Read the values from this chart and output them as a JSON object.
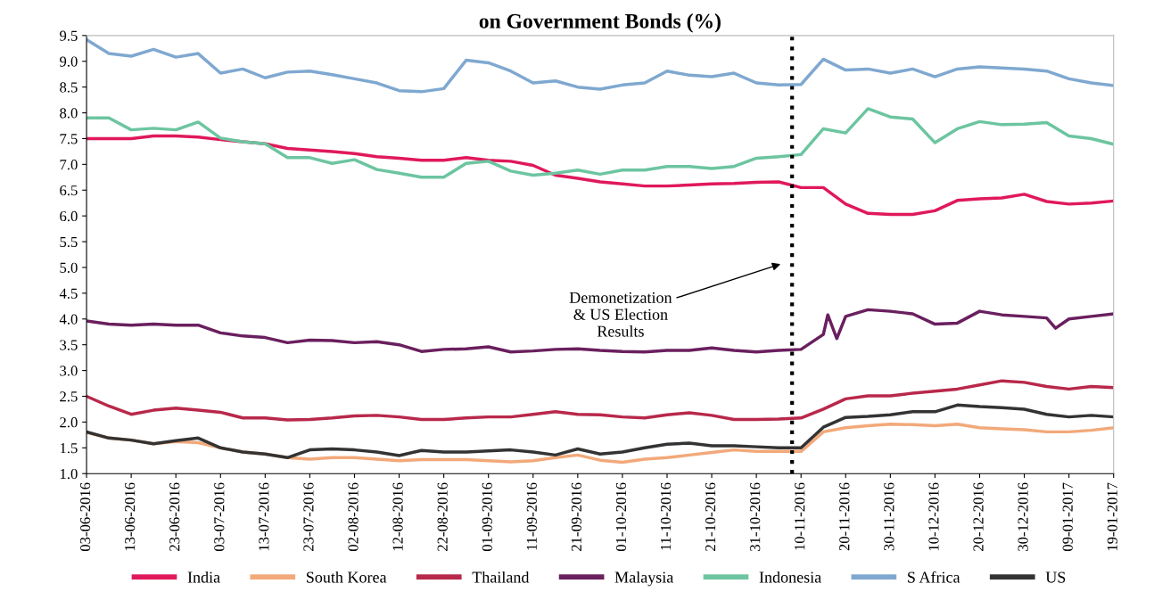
{
  "chart_data": {
    "type": "line",
    "title": "on Government Bonds (%)",
    "x": [
      "2016-06-03",
      "2016-06-08",
      "2016-06-13",
      "2016-06-18",
      "2016-06-23",
      "2016-06-28",
      "2016-07-03",
      "2016-07-08",
      "2016-07-13",
      "2016-07-18",
      "2016-07-23",
      "2016-07-28",
      "2016-08-02",
      "2016-08-07",
      "2016-08-12",
      "2016-08-17",
      "2016-08-22",
      "2016-08-27",
      "2016-09-01",
      "2016-09-06",
      "2016-09-11",
      "2016-09-16",
      "2016-09-21",
      "2016-09-26",
      "2016-10-01",
      "2016-10-06",
      "2016-10-11",
      "2016-10-16",
      "2016-10-21",
      "2016-10-26",
      "2016-10-31",
      "2016-11-05",
      "2016-11-10",
      "2016-11-15",
      "2016-11-20",
      "2016-11-25",
      "2016-11-30",
      "2016-12-05",
      "2016-12-10",
      "2016-12-15",
      "2016-12-20",
      "2016-12-25",
      "2016-12-30",
      "2017-01-04",
      "2017-01-09",
      "2017-01-14",
      "2017-01-19"
    ],
    "series": [
      {
        "name": "India",
        "color": "#e0195a",
        "values": [
          7.5,
          7.5,
          7.5,
          7.55,
          7.55,
          7.53,
          7.48,
          7.44,
          7.4,
          7.31,
          7.28,
          7.25,
          7.21,
          7.15,
          7.12,
          7.08,
          7.08,
          7.13,
          7.08,
          7.06,
          6.98,
          6.79,
          6.73,
          6.66,
          6.62,
          6.58,
          6.58,
          6.6,
          6.62,
          6.63,
          6.65,
          6.66,
          6.55,
          6.55,
          6.23,
          6.05,
          6.03,
          6.03,
          6.1,
          6.3,
          6.33,
          6.35,
          6.42,
          6.28,
          6.23,
          6.25,
          6.29
        ]
      },
      {
        "name": "South Korea",
        "color": "#f2a97a",
        "values": [
          1.8,
          1.69,
          1.65,
          1.58,
          1.62,
          1.6,
          1.5,
          1.42,
          1.38,
          1.31,
          1.28,
          1.31,
          1.31,
          1.28,
          1.25,
          1.27,
          1.27,
          1.27,
          1.25,
          1.23,
          1.25,
          1.31,
          1.36,
          1.26,
          1.22,
          1.28,
          1.31,
          1.36,
          1.41,
          1.46,
          1.43,
          1.43,
          1.43,
          1.81,
          1.89,
          1.93,
          1.96,
          1.95,
          1.93,
          1.96,
          1.89,
          1.87,
          1.85,
          1.81,
          1.81,
          1.84,
          1.89
        ]
      },
      {
        "name": "Thailand",
        "color": "#b8284a",
        "values": [
          2.5,
          2.31,
          2.15,
          2.23,
          2.27,
          2.23,
          2.19,
          2.08,
          2.08,
          2.04,
          2.05,
          2.08,
          2.12,
          2.13,
          2.1,
          2.05,
          2.05,
          2.08,
          2.1,
          2.1,
          2.15,
          2.2,
          2.15,
          2.14,
          2.1,
          2.08,
          2.14,
          2.18,
          2.13,
          2.05,
          2.05,
          2.06,
          2.08,
          2.25,
          2.45,
          2.51,
          2.51,
          2.56,
          2.6,
          2.64,
          2.72,
          2.8,
          2.77,
          2.69,
          2.64,
          2.69,
          2.67
        ]
      },
      {
        "name": "Malaysia",
        "color": "#6a1f5e",
        "x": [
          "2016-06-03",
          "2016-06-08",
          "2016-06-13",
          "2016-06-18",
          "2016-06-23",
          "2016-06-28",
          "2016-07-03",
          "2016-07-08",
          "2016-07-13",
          "2016-07-18",
          "2016-07-23",
          "2016-07-28",
          "2016-08-02",
          "2016-08-07",
          "2016-08-12",
          "2016-08-17",
          "2016-08-22",
          "2016-08-27",
          "2016-09-01",
          "2016-09-06",
          "2016-09-11",
          "2016-09-16",
          "2016-09-21",
          "2016-09-26",
          "2016-10-01",
          "2016-10-06",
          "2016-10-11",
          "2016-10-16",
          "2016-10-21",
          "2016-10-26",
          "2016-10-31",
          "2016-11-05",
          "2016-11-10",
          "2016-11-15",
          "2016-11-16",
          "2016-11-18",
          "2016-11-20",
          "2016-11-25",
          "2016-11-30",
          "2016-12-05",
          "2016-12-10",
          "2016-12-15",
          "2016-12-20",
          "2016-12-25",
          "2016-12-30",
          "2017-01-04",
          "2017-01-06",
          "2017-01-09",
          "2017-01-14",
          "2017-01-19"
        ],
        "values": [
          3.96,
          3.9,
          3.88,
          3.9,
          3.88,
          3.88,
          3.73,
          3.67,
          3.64,
          3.54,
          3.59,
          3.58,
          3.54,
          3.56,
          3.5,
          3.37,
          3.41,
          3.42,
          3.46,
          3.36,
          3.38,
          3.41,
          3.42,
          3.39,
          3.37,
          3.36,
          3.39,
          3.39,
          3.44,
          3.39,
          3.36,
          3.39,
          3.41,
          3.7,
          4.08,
          3.62,
          4.05,
          4.18,
          4.15,
          4.1,
          3.9,
          3.92,
          4.15,
          4.08,
          4.05,
          4.02,
          3.82,
          4.0,
          4.05,
          4.1
        ]
      },
      {
        "name": "Indonesia",
        "color": "#6cc5a0",
        "values": [
          7.9,
          7.9,
          7.67,
          7.7,
          7.67,
          7.82,
          7.51,
          7.44,
          7.4,
          7.13,
          7.13,
          7.02,
          7.09,
          6.9,
          6.83,
          6.75,
          6.75,
          7.02,
          7.06,
          6.87,
          6.79,
          6.83,
          6.89,
          6.81,
          6.89,
          6.89,
          6.96,
          6.96,
          6.92,
          6.96,
          7.12,
          7.15,
          7.19,
          7.69,
          7.61,
          8.08,
          7.92,
          7.88,
          7.42,
          7.69,
          7.83,
          7.77,
          7.78,
          7.81,
          7.55,
          7.5,
          7.39
        ]
      },
      {
        "name": "S Africa",
        "color": "#7fa8d0",
        "values": [
          9.42,
          9.15,
          9.1,
          9.23,
          9.08,
          9.15,
          8.77,
          8.85,
          8.68,
          8.79,
          8.81,
          8.74,
          8.66,
          8.58,
          8.43,
          8.41,
          8.47,
          9.02,
          8.97,
          8.81,
          8.58,
          8.62,
          8.5,
          8.46,
          8.54,
          8.58,
          8.81,
          8.73,
          8.7,
          8.77,
          8.58,
          8.54,
          8.55,
          9.04,
          8.83,
          8.85,
          8.77,
          8.85,
          8.7,
          8.85,
          8.89,
          8.87,
          8.85,
          8.81,
          8.66,
          8.58,
          8.53
        ]
      },
      {
        "name": "US",
        "color": "#333333",
        "values": [
          1.81,
          1.69,
          1.65,
          1.58,
          1.64,
          1.69,
          1.5,
          1.42,
          1.38,
          1.31,
          1.46,
          1.48,
          1.46,
          1.42,
          1.35,
          1.45,
          1.42,
          1.42,
          1.44,
          1.46,
          1.42,
          1.36,
          1.48,
          1.38,
          1.42,
          1.5,
          1.57,
          1.59,
          1.54,
          1.54,
          1.52,
          1.5,
          1.5,
          1.9,
          2.09,
          2.11,
          2.14,
          2.2,
          2.2,
          2.33,
          2.3,
          2.28,
          2.25,
          2.15,
          2.1,
          2.13,
          2.1
        ]
      }
    ],
    "xlim": [
      "2016-06-03",
      "2017-01-19"
    ],
    "xticks": [
      {
        "value": "2016-06-03",
        "label": "03-06-2016"
      },
      {
        "value": "2016-06-13",
        "label": "13-06-2016"
      },
      {
        "value": "2016-06-23",
        "label": "23-06-2016"
      },
      {
        "value": "2016-07-03",
        "label": "03-07-2016"
      },
      {
        "value": "2016-07-13",
        "label": "13-07-2016"
      },
      {
        "value": "2016-07-23",
        "label": "23-07-2016"
      },
      {
        "value": "2016-08-02",
        "label": "02-08-2016"
      },
      {
        "value": "2016-08-12",
        "label": "12-08-2016"
      },
      {
        "value": "2016-08-22",
        "label": "22-08-2016"
      },
      {
        "value": "2016-09-01",
        "label": "01-09-2016"
      },
      {
        "value": "2016-09-11",
        "label": "11-09-2016"
      },
      {
        "value": "2016-09-21",
        "label": "21-09-2016"
      },
      {
        "value": "2016-10-01",
        "label": "01-10-2016"
      },
      {
        "value": "2016-10-11",
        "label": "11-10-2016"
      },
      {
        "value": "2016-10-21",
        "label": "21-10-2016"
      },
      {
        "value": "2016-10-31",
        "label": "31-10-2016"
      },
      {
        "value": "2016-11-10",
        "label": "10-11-2016"
      },
      {
        "value": "2016-11-20",
        "label": "20-11-2016"
      },
      {
        "value": "2016-11-30",
        "label": "30-11-2016"
      },
      {
        "value": "2016-12-10",
        "label": "10-12-2016"
      },
      {
        "value": "2016-12-20",
        "label": "20-12-2016"
      },
      {
        "value": "2016-12-30",
        "label": "30-12-2016"
      },
      {
        "value": "2017-01-09",
        "label": "09-01-2017"
      },
      {
        "value": "2017-01-19",
        "label": "19-01-2017"
      }
    ],
    "ylim": [
      1.0,
      9.5
    ],
    "yticks": [
      {
        "value": 1.0,
        "label": "1.0"
      },
      1.5,
      {
        "value": 2.0,
        "label": "2.0"
      },
      2.5,
      {
        "value": 3.0,
        "label": "3.0"
      },
      3.5,
      {
        "value": 4.0,
        "label": "4.0"
      },
      4.5,
      {
        "value": 5.0,
        "label": "5.0"
      },
      5.5,
      {
        "value": 6.0,
        "label": "6.0"
      },
      6.5,
      {
        "value": 7.0,
        "label": "7.0"
      },
      7.5,
      {
        "value": 8.0,
        "label": "8.0"
      },
      8.5,
      {
        "value": 9.0,
        "label": "9.0"
      },
      9.5
    ],
    "ref_lines": [
      {
        "axis": "x",
        "value": "2016-11-08",
        "color": "#000000",
        "line_style": "dotted"
      }
    ],
    "annotations": [
      "Demonetization\n& US Election\nResults"
    ],
    "grid": false,
    "legend": "bottom",
    "marker": "none",
    "line_style": "solid"
  }
}
